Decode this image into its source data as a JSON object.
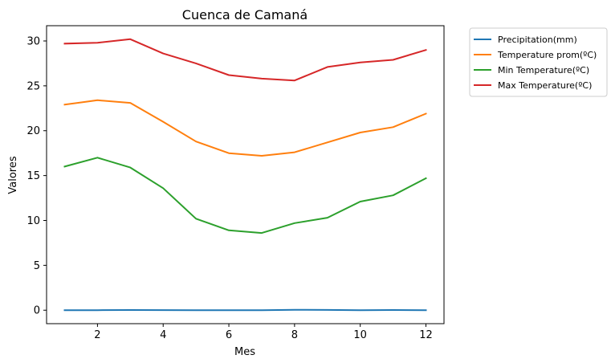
{
  "chart_data": {
    "type": "line",
    "title": "Cuenca de Camaná",
    "xlabel": "Mes",
    "ylabel": "Valores",
    "x": [
      1,
      2,
      3,
      4,
      5,
      6,
      7,
      8,
      9,
      10,
      11,
      12
    ],
    "xlim": [
      0.45,
      12.55
    ],
    "ylim": [
      -1.5,
      31.7
    ],
    "xticks": [
      2,
      4,
      6,
      8,
      10,
      12
    ],
    "yticks": [
      0,
      5,
      10,
      15,
      20,
      25,
      30
    ],
    "grid": false,
    "legend_position": "outside-upper-right",
    "series": [
      {
        "name": "Precipitation(mm)",
        "color": "#1f77b4",
        "values": [
          0.0,
          0.0,
          0.02,
          0.01,
          0.0,
          0.0,
          0.0,
          0.05,
          0.03,
          0.0,
          0.02,
          0.0
        ]
      },
      {
        "name": "Temperature prom(ºC)",
        "color": "#ff7f0e",
        "values": [
          22.9,
          23.4,
          23.1,
          21.0,
          18.8,
          17.5,
          17.2,
          17.6,
          18.7,
          19.8,
          20.4,
          21.9
        ]
      },
      {
        "name": "Min Temperature(ºC)",
        "color": "#2ca02c",
        "values": [
          16.0,
          17.0,
          15.9,
          13.6,
          10.2,
          8.9,
          8.6,
          9.7,
          10.3,
          12.1,
          12.8,
          14.7
        ]
      },
      {
        "name": "Max Temperature(ºC)",
        "color": "#d62728",
        "values": [
          29.7,
          29.8,
          30.2,
          28.6,
          27.5,
          26.2,
          25.8,
          25.6,
          27.1,
          27.6,
          27.9,
          29.0
        ]
      }
    ]
  }
}
